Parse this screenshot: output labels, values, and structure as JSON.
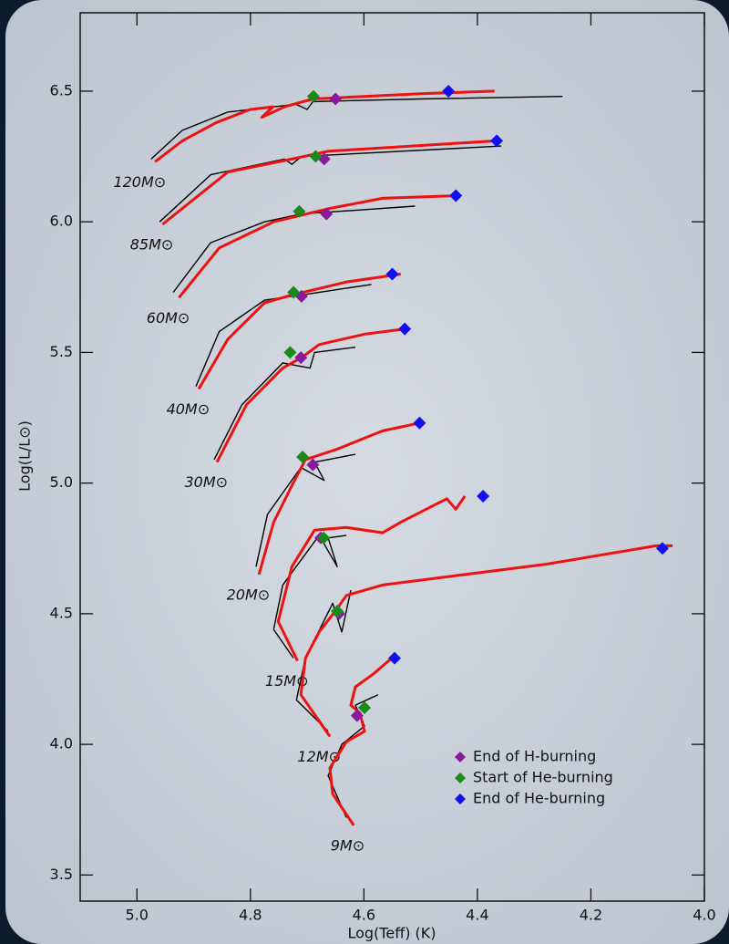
{
  "chart_data": {
    "type": "line",
    "x_label": "Log(Teff) (K)",
    "y_label": "Log(L/L⊙)",
    "xlim": [
      5.1,
      4.0
    ],
    "ylim": [
      3.4,
      6.8
    ],
    "xticks": [
      {
        "value": 5.0,
        "label": "5.0"
      },
      4.8,
      4.6,
      4.4,
      4.2,
      {
        "value": 4.0,
        "label": "4.0"
      }
    ],
    "yticks": [
      3.5,
      {
        "value": 4.0,
        "label": "4.0"
      },
      4.5,
      {
        "value": 5.0,
        "label": "5.0"
      },
      5.5,
      {
        "value": 6.0,
        "label": "6.0"
      },
      6.5
    ],
    "legend_position": "lower right",
    "tracks": [
      {
        "label": "120M⊙",
        "red": {
          "color": "#ee1111",
          "x": [
            4.968,
            4.92,
            4.86,
            4.8,
            4.76,
            4.78,
            4.74,
            4.69,
            4.6,
            4.5,
            4.37
          ],
          "y": [
            6.23,
            6.31,
            6.38,
            6.43,
            6.44,
            6.4,
            6.44,
            6.47,
            6.48,
            6.49,
            6.5
          ]
        },
        "black": {
          "color": "#000000",
          "x": [
            4.975,
            4.92,
            4.84,
            4.72,
            4.7,
            4.69,
            4.5,
            4.25
          ],
          "y": [
            6.24,
            6.35,
            6.42,
            6.45,
            6.43,
            6.46,
            6.47,
            6.48
          ]
        }
      },
      {
        "label": "85M⊙",
        "red": {
          "color": "#ee1111",
          "x": [
            4.955,
            4.84,
            4.727,
            4.663,
            4.366
          ],
          "y": [
            5.99,
            6.19,
            6.24,
            6.27,
            6.31
          ]
        },
        "black": {
          "color": "#000000",
          "x": [
            4.96,
            4.87,
            4.74,
            4.727,
            4.71,
            4.358
          ],
          "y": [
            6.0,
            6.18,
            6.24,
            6.22,
            6.25,
            6.29
          ]
        }
      },
      {
        "label": "60M⊙",
        "red": {
          "color": "#ee1111",
          "x": [
            4.926,
            4.855,
            4.759,
            4.663,
            4.567,
            4.435
          ],
          "y": [
            5.71,
            5.9,
            6.0,
            6.05,
            6.09,
            6.1
          ]
        },
        "black": {
          "color": "#000000",
          "x": [
            4.936,
            4.87,
            4.775,
            4.71,
            4.51
          ],
          "y": [
            5.73,
            5.92,
            6.0,
            6.03,
            6.06
          ]
        }
      },
      {
        "label": "40M⊙",
        "red": {
          "color": "#ee1111",
          "x": [
            4.891,
            4.84,
            4.775,
            4.727,
            4.63,
            4.535
          ],
          "y": [
            5.36,
            5.55,
            5.69,
            5.72,
            5.77,
            5.8
          ]
        },
        "black": {
          "color": "#000000",
          "x": [
            4.896,
            4.855,
            4.775,
            4.71,
            4.587
          ],
          "y": [
            5.37,
            5.58,
            5.7,
            5.72,
            5.76
          ]
        }
      },
      {
        "label": "30M⊙",
        "red": {
          "color": "#ee1111",
          "x": [
            4.859,
            4.807,
            4.743,
            4.71,
            4.679,
            4.599,
            4.527
          ],
          "y": [
            5.08,
            5.3,
            5.44,
            5.48,
            5.53,
            5.57,
            5.59
          ]
        },
        "black": {
          "color": "#000000",
          "x": [
            4.864,
            4.815,
            4.743,
            4.695,
            4.687,
            4.615
          ],
          "y": [
            5.09,
            5.3,
            5.46,
            5.44,
            5.5,
            5.52
          ]
        }
      },
      {
        "label": "20M⊙",
        "red": {
          "color": "#ee1111",
          "x": [
            4.785,
            4.759,
            4.727,
            4.703,
            4.647,
            4.567,
            4.502
          ],
          "y": [
            4.65,
            4.85,
            4.99,
            5.09,
            5.13,
            5.2,
            5.23
          ]
        },
        "black": {
          "color": "#000000",
          "x": [
            4.79,
            4.77,
            4.711,
            4.67,
            4.687,
            4.615
          ],
          "y": [
            4.68,
            4.88,
            5.06,
            5.01,
            5.08,
            5.11
          ]
        }
      },
      {
        "label": "15M⊙",
        "red": {
          "color": "#ee1111",
          "x": [
            4.717,
            4.751,
            4.727,
            4.687,
            4.631,
            4.567,
            4.535,
            4.454,
            4.438,
            4.422
          ],
          "y": [
            4.32,
            4.47,
            4.68,
            4.82,
            4.83,
            4.81,
            4.85,
            4.94,
            4.9,
            4.95
          ]
        },
        "black": {
          "color": "#000000",
          "x": [
            4.724,
            4.759,
            4.743,
            4.679,
            4.647,
            4.663,
            4.631
          ],
          "y": [
            4.33,
            4.44,
            4.61,
            4.8,
            4.68,
            4.79,
            4.8
          ]
        }
      },
      {
        "label": "12M⊙",
        "red": {
          "color": "#ee1111",
          "x": [
            4.66,
            4.711,
            4.703,
            4.679,
            4.647,
            4.631,
            4.567,
            4.278,
            4.085,
            4.056
          ],
          "y": [
            4.03,
            4.19,
            4.33,
            4.43,
            4.52,
            4.57,
            4.61,
            4.69,
            4.76,
            4.76
          ]
        },
        "black": {
          "color": "#000000",
          "x": [
            4.663,
            4.719,
            4.703,
            4.655,
            4.639,
            4.623
          ],
          "y": [
            4.05,
            4.17,
            4.33,
            4.54,
            4.43,
            4.59
          ]
        }
      },
      {
        "label": "9M⊙",
        "red": {
          "color": "#ee1111",
          "x": [
            4.618,
            4.655,
            4.66,
            4.631,
            4.599,
            4.607,
            4.623,
            4.615,
            4.583,
            4.551
          ],
          "y": [
            3.69,
            3.81,
            3.91,
            4.01,
            4.05,
            4.12,
            4.15,
            4.22,
            4.27,
            4.33
          ]
        },
        "black": {
          "color": "#000000",
          "x": [
            4.631,
            4.663,
            4.639,
            4.599,
            4.615,
            4.575
          ],
          "y": [
            3.72,
            3.88,
            4.0,
            4.07,
            4.15,
            4.19
          ]
        }
      }
    ],
    "markers": [
      {
        "name": "End of H-burning",
        "color": "#8b1a9b",
        "x": [
          4.65,
          4.67,
          4.666,
          4.71,
          4.711,
          4.69,
          4.676,
          4.644,
          4.612
        ],
        "y": [
          6.47,
          6.24,
          6.03,
          5.715,
          5.48,
          5.07,
          4.79,
          4.5,
          4.11
        ]
      },
      {
        "name": "Start of He-burning",
        "color": "#1a8a1a",
        "x": [
          4.689,
          4.685,
          4.714,
          4.724,
          4.73,
          4.708,
          4.671,
          4.647,
          4.599
        ],
        "y": [
          6.48,
          6.25,
          6.04,
          5.73,
          5.5,
          5.1,
          4.79,
          4.51,
          4.14
        ]
      },
      {
        "name": "End of He-burning",
        "color": "#1010ee",
        "x": [
          4.451,
          4.366,
          4.438,
          4.55,
          4.528,
          4.502,
          4.39,
          4.074,
          4.546
        ],
        "y": [
          6.5,
          6.31,
          6.1,
          5.8,
          5.59,
          5.23,
          4.95,
          4.75,
          4.33
        ]
      }
    ]
  }
}
